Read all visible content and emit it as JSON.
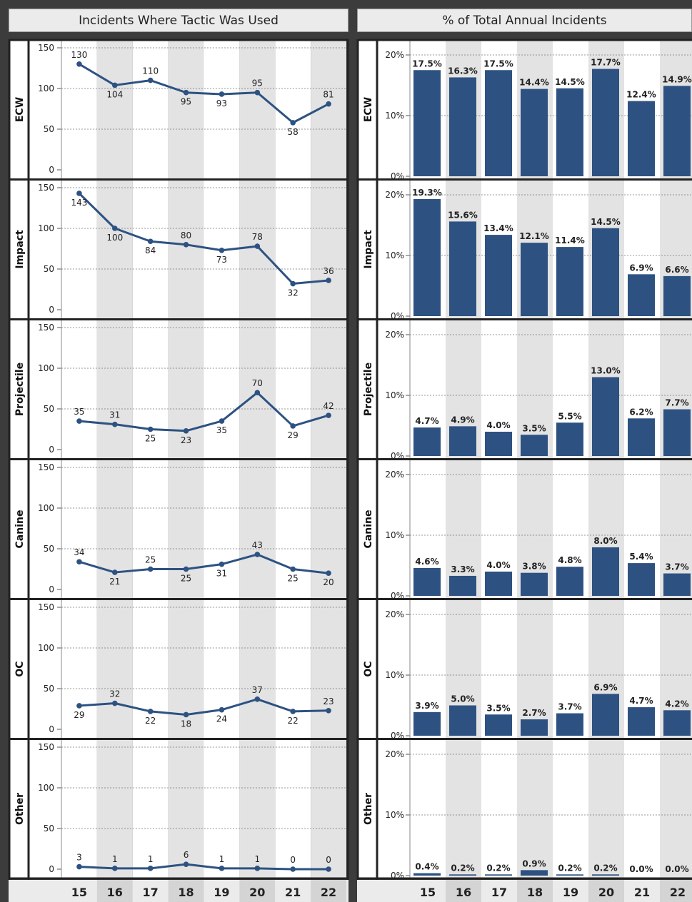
{
  "left_panel": {
    "title": "Incidents Where Tactic Was Used"
  },
  "right_panel": {
    "title": "% of Total Annual Incidents"
  },
  "x_labels": [
    "15",
    "16",
    "17",
    "18",
    "19",
    "20",
    "21",
    "22"
  ],
  "colors": {
    "series": "#2d5282",
    "band_shade": "#e3e3e3",
    "band_light": "#ffffff",
    "header_bg": "#ebebeb",
    "frame": "#3c3c3c"
  },
  "chart_data": [
    {
      "type": "line",
      "title": "Incidents Where Tactic Was Used",
      "categories": [
        "15",
        "16",
        "17",
        "18",
        "19",
        "20",
        "21",
        "22"
      ],
      "ylim": [
        0,
        150
      ],
      "y_ticks": [
        0,
        50,
        100,
        150
      ],
      "grid": true,
      "facets": [
        {
          "name": "ECW",
          "values": [
            130,
            104,
            110,
            95,
            93,
            95,
            58,
            81
          ]
        },
        {
          "name": "Impact",
          "values": [
            143,
            100,
            84,
            80,
            73,
            78,
            32,
            36
          ]
        },
        {
          "name": "Projectile",
          "values": [
            35,
            31,
            25,
            23,
            35,
            70,
            29,
            42
          ]
        },
        {
          "name": "Canine",
          "values": [
            34,
            21,
            25,
            25,
            31,
            43,
            25,
            20
          ]
        },
        {
          "name": "OC",
          "values": [
            29,
            32,
            22,
            18,
            24,
            37,
            22,
            23
          ]
        },
        {
          "name": "Other",
          "values": [
            3,
            1,
            1,
            6,
            1,
            1,
            0,
            0
          ]
        }
      ]
    },
    {
      "type": "bar",
      "title": "% of Total Annual Incidents",
      "categories": [
        "15",
        "16",
        "17",
        "18",
        "19",
        "20",
        "21",
        "22"
      ],
      "ylim": [
        0,
        22
      ],
      "y_ticks": [
        0,
        10,
        20
      ],
      "y_tick_labels": [
        "0%",
        "10%",
        "20%"
      ],
      "grid": true,
      "facets": [
        {
          "name": "ECW",
          "values": [
            17.5,
            16.3,
            17.5,
            14.4,
            14.5,
            17.7,
            12.4,
            14.9
          ],
          "labels": [
            "17.5%",
            "16.3%",
            "17.5%",
            "14.4%",
            "14.5%",
            "17.7%",
            "12.4%",
            "14.9%"
          ]
        },
        {
          "name": "Impact",
          "values": [
            19.3,
            15.6,
            13.4,
            12.1,
            11.4,
            14.5,
            6.9,
            6.6
          ],
          "labels": [
            "19.3%",
            "15.6%",
            "13.4%",
            "12.1%",
            "11.4%",
            "14.5%",
            "6.9%",
            "6.6%"
          ]
        },
        {
          "name": "Projectile",
          "values": [
            4.7,
            4.9,
            4.0,
            3.5,
            5.5,
            13.0,
            6.2,
            7.7
          ],
          "labels": [
            "4.7%",
            "4.9%",
            "4.0%",
            "3.5%",
            "5.5%",
            "13.0%",
            "6.2%",
            "7.7%"
          ]
        },
        {
          "name": "Canine",
          "values": [
            4.6,
            3.3,
            4.0,
            3.8,
            4.8,
            8.0,
            5.4,
            3.7
          ],
          "labels": [
            "4.6%",
            "3.3%",
            "4.0%",
            "3.8%",
            "4.8%",
            "8.0%",
            "5.4%",
            "3.7%"
          ]
        },
        {
          "name": "OC",
          "values": [
            3.9,
            5.0,
            3.5,
            2.7,
            3.7,
            6.9,
            4.7,
            4.2
          ],
          "labels": [
            "3.9%",
            "5.0%",
            "3.5%",
            "2.7%",
            "3.7%",
            "6.9%",
            "4.7%",
            "4.2%"
          ]
        },
        {
          "name": "Other",
          "values": [
            0.4,
            0.2,
            0.2,
            0.9,
            0.2,
            0.2,
            0.0,
            0.0
          ],
          "labels": [
            "0.4%",
            "0.2%",
            "0.2%",
            "0.9%",
            "0.2%",
            "0.2%",
            "0.0%",
            "0.0%"
          ]
        }
      ]
    }
  ]
}
